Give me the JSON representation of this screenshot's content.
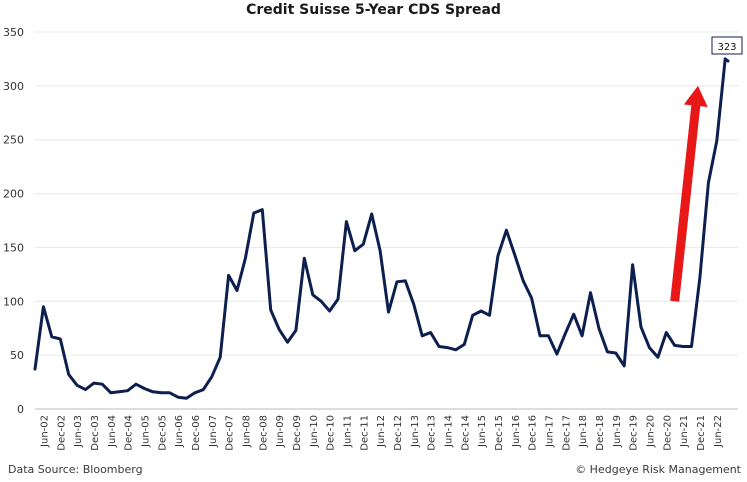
{
  "chart_data": {
    "type": "line",
    "title": "Credit Suisse 5-Year CDS Spread",
    "xlabel": "",
    "ylabel": "",
    "ylim": [
      0,
      350
    ],
    "yticks": [
      0,
      50,
      100,
      150,
      200,
      250,
      300,
      350
    ],
    "grid": true,
    "legend": "none",
    "line_color": "#0d1f4f",
    "arrow_color": "#e81818",
    "x_tick_labels": [
      "Jun-02",
      "Dec-02",
      "Jun-03",
      "Dec-03",
      "Jun-04",
      "Dec-04",
      "Jun-05",
      "Dec-05",
      "Jun-06",
      "Dec-06",
      "Jun-07",
      "Dec-07",
      "Jun-08",
      "Dec-08",
      "Jun-09",
      "Dec-09",
      "Jun-10",
      "Dec-10",
      "Jun-11",
      "Dec-11",
      "Jun-12",
      "Dec-12",
      "Jun-13",
      "Dec-13",
      "Jun-14",
      "Dec-14",
      "Jun-15",
      "Dec-15",
      "Jun-16",
      "Dec-16",
      "Jun-17",
      "Dec-17",
      "Jun-18",
      "Dec-18",
      "Jun-19",
      "Dec-19",
      "Jun-20",
      "Dec-20",
      "Jun-21",
      "Dec-21",
      "Jun-22"
    ],
    "series": [
      {
        "x": [
          "2002-03",
          "2002-06",
          "2002-09",
          "2002-12",
          "2003-03",
          "2003-06",
          "2003-09",
          "2003-12",
          "2004-03",
          "2004-06",
          "2004-09",
          "2004-12",
          "2005-03",
          "2005-06",
          "2005-09",
          "2005-12",
          "2006-03",
          "2006-06",
          "2006-09",
          "2006-12",
          "2007-03",
          "2007-06",
          "2007-09",
          "2007-12",
          "2008-03",
          "2008-06",
          "2008-09",
          "2008-12",
          "2009-03",
          "2009-06",
          "2009-09",
          "2009-12",
          "2010-03",
          "2010-06",
          "2010-09",
          "2010-12",
          "2011-03",
          "2011-06",
          "2011-09",
          "2011-12",
          "2012-03",
          "2012-06",
          "2012-09",
          "2012-12",
          "2013-03",
          "2013-06",
          "2013-09",
          "2013-12",
          "2014-03",
          "2014-06",
          "2014-09",
          "2014-12",
          "2015-03",
          "2015-06",
          "2015-09",
          "2015-12",
          "2016-03",
          "2016-06",
          "2016-09",
          "2016-12",
          "2017-03",
          "2017-06",
          "2017-09",
          "2017-12",
          "2018-03",
          "2018-06",
          "2018-09",
          "2018-12",
          "2019-03",
          "2019-06",
          "2019-09",
          "2019-12",
          "2020-03",
          "2020-06",
          "2020-09",
          "2020-12",
          "2021-03",
          "2021-06",
          "2021-09",
          "2021-12",
          "2022-03",
          "2022-06",
          "2022-09",
          "2022-10"
        ],
        "values": [
          37,
          95,
          67,
          65,
          32,
          22,
          18,
          24,
          23,
          15,
          16,
          17,
          23,
          19,
          16,
          15,
          15,
          11,
          10,
          15,
          18,
          30,
          48,
          124,
          110,
          140,
          182,
          185,
          92,
          74,
          62,
          73,
          140,
          106,
          100,
          91,
          102,
          174,
          147,
          153,
          181,
          147,
          90,
          118,
          119,
          97,
          68,
          71,
          58,
          57,
          55,
          60,
          87,
          91,
          87,
          142,
          166,
          143,
          119,
          103,
          68,
          68,
          51,
          70,
          88,
          68,
          108,
          75,
          53,
          52,
          40,
          134,
          76,
          57,
          48,
          71,
          59,
          58,
          58,
          122,
          210,
          249,
          325,
          323
        ]
      }
    ],
    "annotations": [
      {
        "label": "323"
      }
    ]
  },
  "footer": {
    "source": "Data Source: Bloomberg",
    "copyright": "© Hedgeye Risk Management"
  }
}
